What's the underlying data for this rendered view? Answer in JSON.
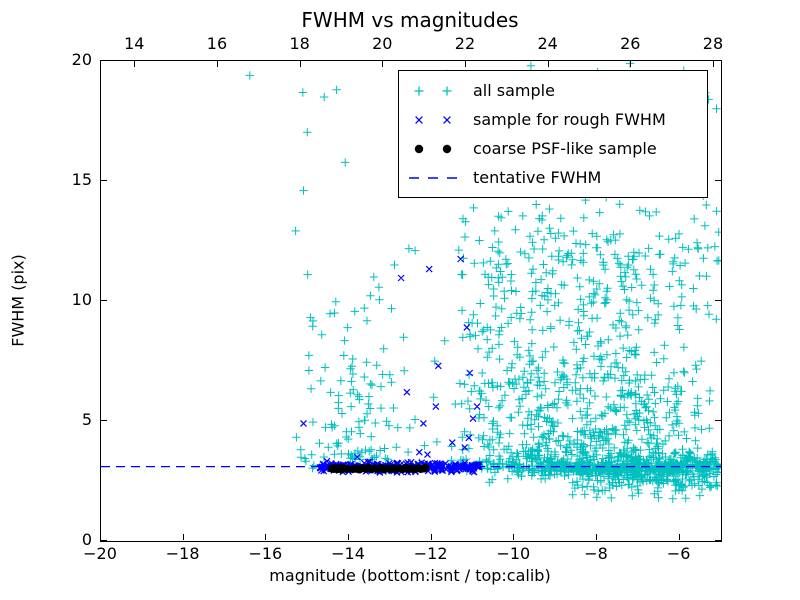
{
  "chart_data": {
    "type": "scatter",
    "title": "FWHM vs magnitudes",
    "xlabel": "magnitude (bottom:isnt / top:calib)",
    "ylabel": "FWHM (pix)",
    "xlim": [
      -20,
      -5
    ],
    "ylim": [
      0,
      20
    ],
    "grid": false,
    "bottom_axis_ticks": [
      {
        "v": -20,
        "label": "−20"
      },
      {
        "v": -18,
        "label": "−18"
      },
      {
        "v": -16,
        "label": "−16"
      },
      {
        "v": -14,
        "label": "−14"
      },
      {
        "v": -12,
        "label": "−12"
      },
      {
        "v": -10,
        "label": "−10"
      },
      {
        "v": -8,
        "label": "−8"
      },
      {
        "v": -6,
        "label": "−6"
      }
    ],
    "top_axis": {
      "range": [
        13.17,
        28.17
      ],
      "ticks": [
        {
          "v": 14,
          "label": "14"
        },
        {
          "v": 16,
          "label": "16"
        },
        {
          "v": 18,
          "label": "18"
        },
        {
          "v": 20,
          "label": "20"
        },
        {
          "v": 22,
          "label": "22"
        },
        {
          "v": 24,
          "label": "24"
        },
        {
          "v": 26,
          "label": "26"
        },
        {
          "v": 28,
          "label": "28"
        }
      ]
    },
    "y_axis_ticks": [
      {
        "v": 0,
        "label": "0"
      },
      {
        "v": 5,
        "label": "5"
      },
      {
        "v": 10,
        "label": "10"
      },
      {
        "v": 15,
        "label": "15"
      },
      {
        "v": 20,
        "label": "20"
      }
    ],
    "tentative_fwhm_value": 3.1,
    "colors": {
      "all_sample": "#00BFBF",
      "rough_fwhm": "#0000FF",
      "psf_sample": "#000000",
      "dashed_line": "#0000FF"
    },
    "legend": {
      "position": "upper right",
      "entries": [
        {
          "label": "all sample",
          "marker": "plus",
          "color": "#00BFBF"
        },
        {
          "label": "sample for rough FWHM",
          "marker": "cross",
          "color": "#0000FF"
        },
        {
          "label": "coarse PSF-like sample",
          "marker": "dot",
          "color": "#000000"
        },
        {
          "label": "tentative FWHM",
          "marker": "dashes",
          "color": "#0000FF"
        }
      ]
    },
    "series": [
      {
        "name": "all sample",
        "marker": "plus",
        "color": "#00BFBF",
        "seed": 7,
        "clusters": [
          {
            "n": 380,
            "x": {
              "d": "u",
              "lo": -10.7,
              "hi": -5.05,
              "pow": 0.75
            },
            "y": {
              "d": "g",
              "m": 3.15,
              "s": 0.28,
              "lo": 2.3,
              "hi": 4.0
            }
          },
          {
            "n": 170,
            "x": {
              "d": "u",
              "lo": -8.8,
              "hi": -5.05,
              "pow": 0.8
            },
            "y": {
              "d": "g",
              "m": 2.6,
              "s": 0.4,
              "lo": 1.7,
              "hi": 3.2
            }
          },
          {
            "n": 800,
            "x": {
              "d": "g",
              "m": -7.7,
              "s": 1.35,
              "lo": -11.3,
              "hi": -5.05
            },
            "y": {
              "d": "p",
              "base": 2.9,
              "range": 10,
              "pow": 2.3,
              "hi": 14.8
            }
          },
          {
            "n": 200,
            "x": {
              "d": "u",
              "lo": -11.3,
              "hi": -9.0
            },
            "y": {
              "d": "p",
              "base": 3.0,
              "range": 11,
              "pow": 1.7,
              "hi": 14
            }
          },
          {
            "n": 110,
            "x": {
              "d": "u",
              "lo": -10.8,
              "hi": -5.05
            },
            "y": {
              "d": "u",
              "lo": 11.5,
              "hi": 20,
              "pow": 1.6
            }
          },
          {
            "n": 95,
            "x": {
              "d": "g",
              "m": -13.9,
              "s": 0.6,
              "lo": -15.3,
              "hi": -12.6
            },
            "y": {
              "d": "p",
              "base": 3.4,
              "range": 6.6,
              "pow": 1.7,
              "hi": 10
            }
          },
          {
            "n": 55,
            "x": {
              "d": "u",
              "lo": -15.3,
              "hi": -11.2
            },
            "y": {
              "d": "p",
              "base": 3.0,
              "range": 17,
              "pow": 2.2,
              "hi": 20
            }
          }
        ],
        "points": [
          [
            -16.4,
            19.4
          ],
          [
            -14.6,
            18.5
          ],
          [
            -14.3,
            18.8
          ],
          [
            -15.0,
            11.1
          ],
          [
            -15.1,
            14.6
          ],
          [
            -13.4,
            11.0
          ],
          [
            -12.9,
            11.5
          ],
          [
            -12.4,
            12.1
          ],
          [
            -9.6,
            19.8
          ],
          [
            -9.0,
            19.3
          ],
          [
            -5.9,
            19.6
          ],
          [
            -5.3,
            18.4
          ],
          [
            -6.4,
            16.9
          ],
          [
            -10.3,
            16.3
          ],
          [
            -7.2,
            19.9
          ],
          [
            -8.4,
            19.1
          ]
        ]
      },
      {
        "name": "sample for rough FWHM",
        "marker": "cross",
        "color": "#0000FF",
        "seed": 13,
        "clusters": [
          {
            "n": 290,
            "x": {
              "d": "u",
              "lo": -14.72,
              "hi": -10.85
            },
            "y": {
              "d": "g",
              "m": 3.07,
              "s": 0.1,
              "lo": 2.75,
              "hi": 3.45
            }
          }
        ],
        "points": [
          [
            -12.74,
            10.96
          ],
          [
            -12.06,
            11.33
          ],
          [
            -11.3,
            11.75
          ],
          [
            -11.15,
            8.9
          ],
          [
            -11.84,
            7.3
          ],
          [
            -11.08,
            7.0
          ],
          [
            -15.1,
            4.9
          ],
          [
            -12.2,
            4.9
          ],
          [
            -12.1,
            3.6
          ],
          [
            -11.9,
            5.6
          ],
          [
            -11.0,
            5.1
          ],
          [
            -10.9,
            5.6
          ],
          [
            -11.5,
            4.1
          ],
          [
            -11.1,
            4.3
          ],
          [
            -12.3,
            3.7
          ],
          [
            -13.8,
            3.5
          ],
          [
            -12.6,
            6.2
          ],
          [
            -11.2,
            3.9
          ]
        ]
      },
      {
        "name": "coarse PSF-like sample",
        "marker": "dot",
        "color": "#000000",
        "seed": 3,
        "clusters": [],
        "points": [
          [
            -14.42,
            3.02
          ],
          [
            -14.38,
            3.0
          ],
          [
            -14.33,
            3.05
          ],
          [
            -14.28,
            2.99
          ],
          [
            -14.22,
            3.03
          ],
          [
            -14.18,
            2.97
          ],
          [
            -14.12,
            3.04
          ],
          [
            -14.05,
            3.0
          ],
          [
            -13.9,
            3.0
          ],
          [
            -13.82,
            3.02
          ],
          [
            -13.75,
            2.98
          ],
          [
            -13.68,
            3.03
          ],
          [
            -13.6,
            3.01
          ],
          [
            -13.52,
            3.05
          ],
          [
            -13.45,
            2.99
          ],
          [
            -13.38,
            3.02
          ],
          [
            -13.3,
            3.0
          ],
          [
            -13.22,
            3.04
          ],
          [
            -13.15,
            2.98
          ],
          [
            -13.08,
            3.02
          ],
          [
            -13.0,
            3.0
          ],
          [
            -12.92,
            3.03
          ],
          [
            -12.85,
            2.99
          ],
          [
            -12.78,
            3.02
          ],
          [
            -12.7,
            3.0
          ],
          [
            -12.62,
            3.04
          ],
          [
            -12.55,
            3.0
          ],
          [
            -12.48,
            3.02
          ],
          [
            -12.4,
            2.99
          ],
          [
            -12.33,
            3.03
          ],
          [
            -12.26,
            3.0
          ],
          [
            -12.18,
            3.02
          ],
          [
            -12.15,
            3.05
          ]
        ]
      },
      {
        "name": "tentative FWHM",
        "type": "hline",
        "style": "dashed",
        "color": "#0000FF",
        "y": 3.1
      }
    ]
  }
}
